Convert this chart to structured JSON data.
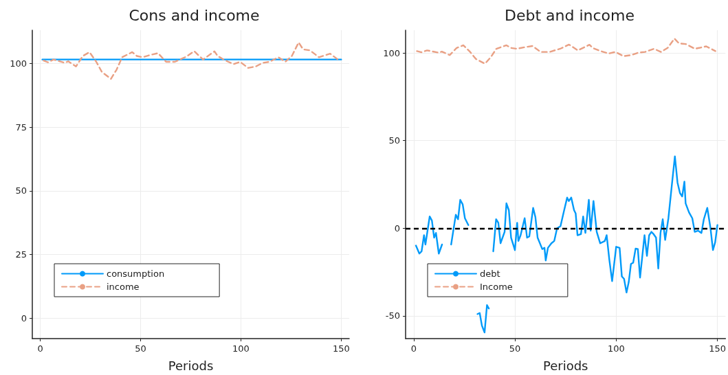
{
  "chart_data": [
    {
      "type": "line",
      "title": "Cons and income",
      "xlabel": "Periods",
      "xlim": [
        -4,
        154
      ],
      "xticks": [
        0,
        50,
        100,
        150
      ],
      "ylim": [
        -8,
        113
      ],
      "yticks": [
        0,
        25,
        50,
        75,
        100
      ],
      "grid": true,
      "legend": "bottom left",
      "marker": "none",
      "series": [
        {
          "name": "consumption",
          "color": "#009af9",
          "line_style": "solid",
          "x": [
            1,
            150
          ],
          "values": [
            101.5,
            101.5
          ]
        },
        {
          "name": "income",
          "color": "#e9a084",
          "line_style": "dashed",
          "x": [
            1.6,
            3.8,
            6.6,
            12.2,
            13.9,
            17.8,
            21.2,
            24.5,
            27.9,
            30.7,
            35.2,
            38,
            40.8,
            45.8,
            48.1,
            50.9,
            54.8,
            58.7,
            62.7,
            67.1,
            72.7,
            76.7,
            81.1,
            86.8,
            88.4,
            91.8,
            96.3,
            99.6,
            103.6,
            107.5,
            110.9,
            114.2,
            118.7,
            122.1,
            125.4,
            128.8,
            131,
            134.4,
            138.9,
            144.5,
            149
          ],
          "values": [
            101.1,
            100.4,
            101.5,
            100.2,
            100.8,
            98.8,
            102.9,
            104.4,
            100.6,
            96.6,
            93.9,
            97.5,
            102.4,
            104.4,
            102.9,
            102.4,
            103.3,
            104,
            100.6,
            100.6,
            102.6,
            104.8,
            101.5,
            104.7,
            102.9,
            101.3,
            99.7,
            100.6,
            98.2,
            98.8,
            100.2,
            100.6,
            102.4,
            100.6,
            102.9,
            108.2,
            105.5,
            105.1,
            102.4,
            103.8,
            101.1
          ]
        }
      ]
    },
    {
      "type": "line",
      "title": "Debt and income",
      "xlabel": "Periods",
      "xlim": [
        -4,
        154
      ],
      "xticks": [
        0,
        50,
        100,
        150
      ],
      "ylim": [
        -63,
        113
      ],
      "yticks": [
        -50,
        0,
        50,
        100
      ],
      "grid": true,
      "legend": "bottom left",
      "marker": "none",
      "ref_lines": [
        {
          "axis": "y",
          "value": 0,
          "label": null,
          "color": "#000000",
          "line_style": "dashed"
        }
      ],
      "series": [
        {
          "name": "debt",
          "color": "#009af9",
          "line_style": "solid",
          "x": [
            1.1,
            2.8,
            3.9,
            5.1,
            5.8,
            7.9,
            9,
            10.1,
            11,
            12.4,
            14,
            16,
            18.5,
            20.8,
            21.9,
            23,
            24.2,
            25.3,
            27,
            28.5,
            30.3,
            31.5,
            32.6,
            33.7,
            35,
            36.2,
            37.1,
            38.2,
            39.3,
            40.7,
            41.8,
            42.9,
            44.9,
            45.8,
            47,
            48.1,
            50,
            51.1,
            51.7,
            52.8,
            54.8,
            56,
            57.1,
            59,
            60.1,
            61.2,
            63.5,
            64.6,
            65.2,
            66.3,
            68,
            69.4,
            70.8,
            72.5,
            74.2,
            75.8,
            76.6,
            77.8,
            79.2,
            80,
            80.9,
            82.6,
            83.7,
            84.8,
            86.5,
            87.4,
            88.8,
            90.4,
            92.1,
            94.4,
            95.3,
            96.6,
            98,
            100,
            101.7,
            102.8,
            103.9,
            105.1,
            106.2,
            107.3,
            108.4,
            109.6,
            110.7,
            111.8,
            114,
            115.2,
            116.3,
            117.4,
            118.5,
            119.7,
            120.8,
            121.9,
            123,
            124.2,
            125.8,
            127.5,
            129,
            130.3,
            131.5,
            132.6,
            133.7,
            134.3,
            136,
            137.6,
            138.8,
            140.4,
            142.1,
            143.3,
            145,
            146.6,
            147.8,
            148.9,
            150
          ],
          "values": [
            -9.9,
            -14.5,
            -13.2,
            -4,
            -9.3,
            6.7,
            4.4,
            -5.4,
            -2.7,
            -14.5,
            -9.3,
            null,
            -9.3,
            7.7,
            5.1,
            16.2,
            13.6,
            5.7,
            1.8,
            null,
            null,
            -49,
            -48.4,
            -55.6,
            -59.5,
            -43.9,
            -45.8,
            null,
            -13.2,
            5.1,
            3.1,
            -8.6,
            -2.1,
            14.2,
            10.3,
            -5.4,
            -12.5,
            3.1,
            -7.3,
            -4,
            5.7,
            -5.4,
            -4.7,
            11.6,
            6.4,
            -5.4,
            -11.9,
            -11.2,
            -18.4,
            -11.2,
            -8.6,
            -7.3,
            -0.1,
            1.2,
            9.7,
            17.5,
            15.5,
            17.5,
            10.3,
            8.4,
            -4,
            -3.4,
            6.7,
            -2.7,
            16.2,
            -1.4,
            15.5,
            -2.1,
            -8.6,
            -7.3,
            -4,
            -17.8,
            -30.2,
            -10.6,
            -11.2,
            -27.5,
            -28.9,
            -36.7,
            -30.8,
            -20.4,
            -19.7,
            -11.6,
            -11.9,
            -28.2,
            -4,
            -15.8,
            -4,
            -2.1,
            -3.4,
            -5.4,
            -23,
            -2.7,
            5.1,
            -6.7,
            5.7,
            24.7,
            41,
            26,
            20.1,
            18.1,
            26.6,
            14.2,
            9,
            5.7,
            -2.1,
            -1.4,
            -2.7,
            5.1,
            11.6,
            -0.1,
            -12.5,
            -8,
            1.8
          ]
        },
        {
          "name": "Income",
          "color": "#e9a084",
          "line_style": "dashed",
          "x": [
            1.6,
            3.8,
            6.6,
            12.2,
            13.9,
            17.8,
            21.2,
            24.5,
            27.9,
            30.7,
            35.2,
            38,
            40.8,
            45.8,
            48.1,
            50.9,
            54.8,
            58.7,
            62.7,
            67.1,
            72.7,
            76.7,
            81.1,
            86.8,
            88.4,
            91.8,
            96.3,
            99.6,
            103.6,
            107.5,
            110.9,
            114.2,
            118.7,
            122.1,
            125.4,
            128.8,
            131,
            134.4,
            138.9,
            144.5,
            149
          ],
          "values": [
            101.1,
            100.4,
            101.5,
            100.2,
            100.8,
            98.8,
            102.9,
            104.4,
            100.6,
            96.6,
            93.9,
            97.5,
            102.4,
            104.4,
            102.9,
            102.4,
            103.3,
            104,
            100.6,
            100.6,
            102.6,
            104.8,
            101.5,
            104.7,
            102.9,
            101.3,
            99.7,
            100.6,
            98.2,
            98.8,
            100.2,
            100.6,
            102.4,
            100.6,
            102.9,
            108.2,
            105.5,
            105.1,
            102.4,
            103.8,
            101.1
          ]
        }
      ]
    }
  ]
}
